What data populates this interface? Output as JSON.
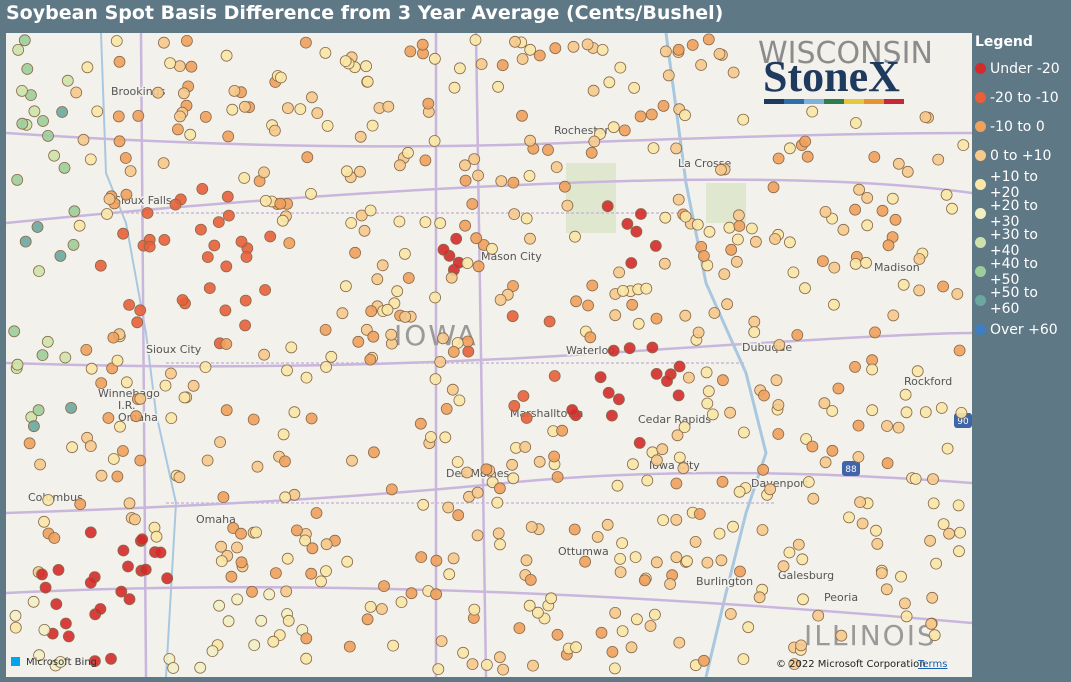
{
  "header": {
    "title": "Soybean Spot Basis Difference from 3 Year Average (Cents/Bushel)"
  },
  "legend": {
    "title": "Legend",
    "items": [
      {
        "label": "Under -20",
        "color": "#d42a2a"
      },
      {
        "label": "-20 to -10",
        "color": "#e85f3a"
      },
      {
        "label": "-10 to 0",
        "color": "#f0a15c"
      },
      {
        "label": "0 to +10",
        "color": "#f6c98c"
      },
      {
        "label": "+10 to +20",
        "color": "#fae7a6"
      },
      {
        "label": "+20 to +30",
        "color": "#f1efc4"
      },
      {
        "label": "+30 to +40",
        "color": "#cde3aa"
      },
      {
        "label": "+40 to +50",
        "color": "#9dcd9b"
      },
      {
        "label": "+50 to +60",
        "color": "#6aa8a0"
      },
      {
        "label": "Over +60",
        "color": "#3d7fc2"
      }
    ]
  },
  "map": {
    "states": [
      "WISCONSIN",
      "IOWA",
      "ILLINOIS"
    ],
    "cities": [
      "Brookings",
      "Rochester",
      "La Crosse",
      "Sioux Falls",
      "Mason City",
      "Waterloo",
      "Dubuque",
      "Madison",
      "Rockford",
      "Sioux City",
      "Winnebago",
      "I.R.",
      "Omaha",
      "Marshalltown",
      "Cedar Rapids",
      "Iowa City",
      "Des Moines",
      "Davenport",
      "Columbus",
      "Omaha",
      "Ottumwa",
      "Burlington",
      "Galesburg",
      "Peoria"
    ],
    "shields": [
      "90",
      "88"
    ],
    "logo": "StoneX",
    "attribution": "Microsoft Bing",
    "copyright": "© 2022 Microsoft Corporation",
    "terms": "Terms"
  }
}
